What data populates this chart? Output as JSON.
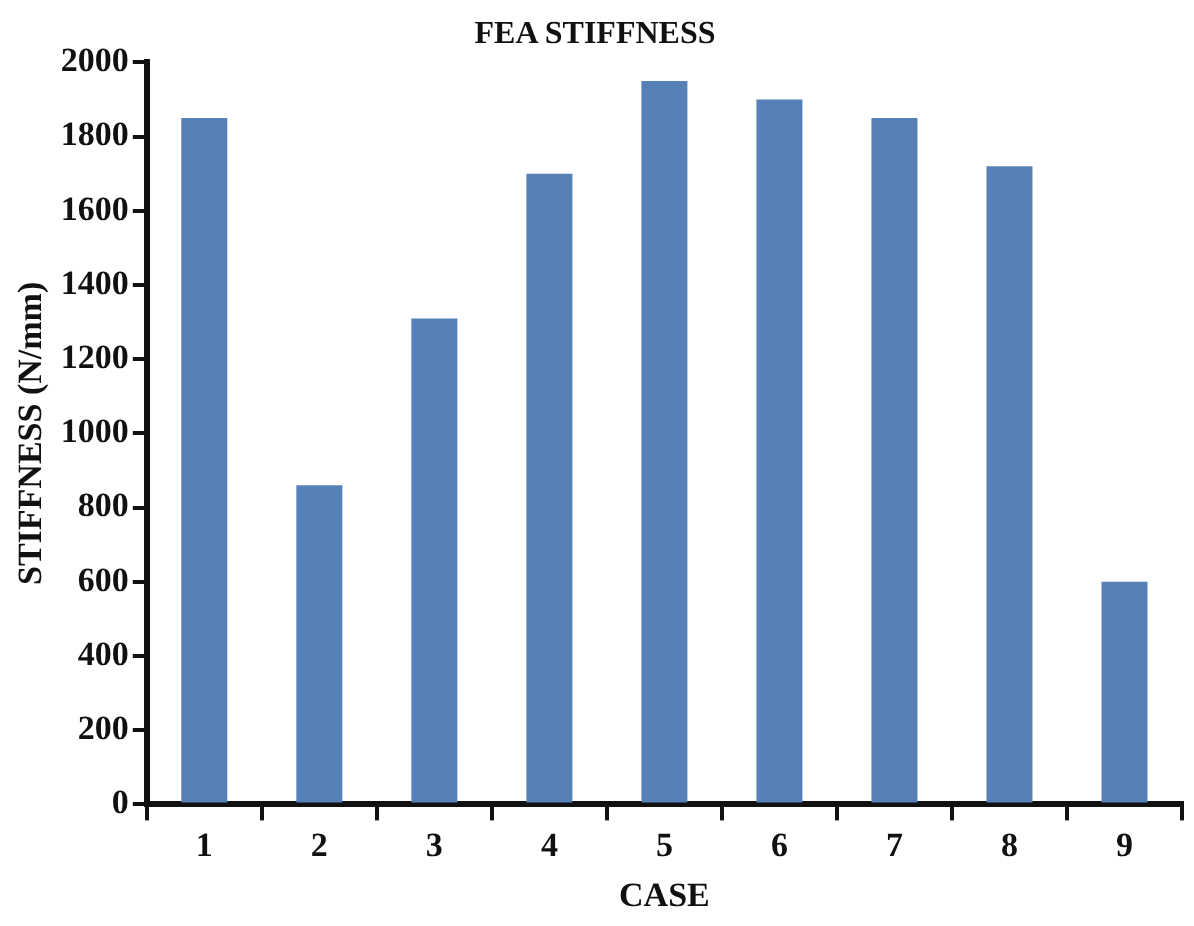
{
  "chart_data": {
    "type": "bar",
    "title": "FEA STIFFNESS",
    "xlabel": "CASE",
    "ylabel": "STIFFNESS (N/mm)",
    "categories": [
      "1",
      "2",
      "3",
      "4",
      "5",
      "6",
      "7",
      "8",
      "9"
    ],
    "values": [
      1850,
      860,
      1310,
      1700,
      1950,
      1900,
      1850,
      1720,
      600
    ],
    "color": "#5680b8",
    "ylim": [
      0,
      2000
    ],
    "yticks": [
      0,
      200,
      400,
      600,
      800,
      1000,
      1200,
      1400,
      1600,
      1800,
      2000
    ],
    "grid": false,
    "legend": false
  }
}
